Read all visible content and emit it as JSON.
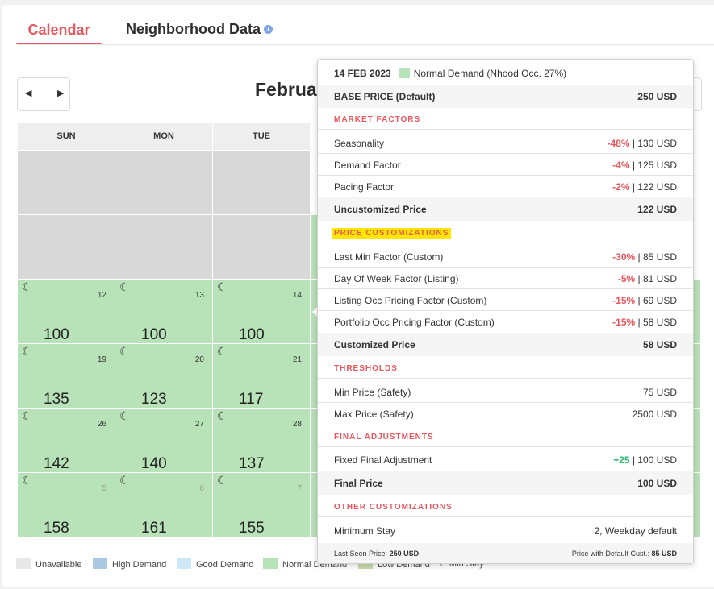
{
  "tabs": {
    "calendar": "Calendar",
    "neighborhood": "Neighborhood Data",
    "info_icon": "i"
  },
  "nav": {
    "prev": "◀",
    "next": "▶"
  },
  "month_title": "Februa",
  "days_of_week": [
    "SUN",
    "MON",
    "TUE"
  ],
  "weeks": [
    {
      "cells": [
        {
          "state": "unavailable"
        },
        {
          "state": "unavailable"
        },
        {
          "state": "unavailable"
        }
      ]
    },
    {
      "cells": [
        {
          "state": "unavailable"
        },
        {
          "state": "unavailable"
        },
        {
          "state": "unavailable"
        }
      ]
    },
    {
      "cells": [
        {
          "day": "12",
          "price": "100"
        },
        {
          "day": "13",
          "price": "100"
        },
        {
          "day": "14",
          "price": "100"
        }
      ]
    },
    {
      "cells": [
        {
          "day": "19",
          "price": "135"
        },
        {
          "day": "20",
          "price": "123"
        },
        {
          "day": "21",
          "price": "117"
        }
      ]
    },
    {
      "cells": [
        {
          "day": "26",
          "price": "142"
        },
        {
          "day": "27",
          "price": "140"
        },
        {
          "day": "28",
          "price": "137"
        }
      ]
    },
    {
      "cells": [
        {
          "day": "5",
          "price": "158"
        },
        {
          "day": "6",
          "price": "161"
        },
        {
          "day": "7",
          "price": "155"
        }
      ]
    }
  ],
  "legend": [
    "Unavailable",
    "High Demand",
    "Good Demand",
    "Normal Demand",
    "Low Demand",
    "Min Stay"
  ],
  "colors": {
    "accent": "#e8585f",
    "normal_demand": "#b8e2b8",
    "high_demand": "#a9c9e3",
    "good_demand": "#cde8f7",
    "unavailable": "#e8e8e8",
    "low_demand": "#c9dcab",
    "positive": "#2eb872"
  },
  "popover": {
    "date": "14 FEB 2023",
    "demand": "Normal Demand (Nhood Occ. 27%)",
    "base_price_label": "BASE PRICE (Default)",
    "base_price_value": "250 USD",
    "market_factors_title": "MARKET FACTORS",
    "market_factors": [
      {
        "label": "Seasonality",
        "pct": "-48%",
        "value": "130 USD"
      },
      {
        "label": "Demand Factor",
        "pct": "-4%",
        "value": "125 USD"
      },
      {
        "label": "Pacing Factor",
        "pct": "-2%",
        "value": "122 USD"
      }
    ],
    "uncustomized_label": "Uncustomized Price",
    "uncustomized_value": "122 USD",
    "price_customizations_title": "PRICE CUSTOMIZATIONS",
    "price_customizations": [
      {
        "label": "Last Min Factor (Custom)",
        "pct": "-30%",
        "value": "85 USD"
      },
      {
        "label": "Day Of Week Factor (Listing)",
        "pct": "-5%",
        "value": "81 USD"
      },
      {
        "label": "Listing Occ Pricing Factor (Custom)",
        "pct": "-15%",
        "value": "69 USD"
      },
      {
        "label": "Portfolio Occ Pricing Factor (Custom)",
        "pct": "-15%",
        "value": "58 USD"
      }
    ],
    "customized_label": "Customized Price",
    "customized_value": "58 USD",
    "thresholds_title": "THRESHOLDS",
    "min_label": "Min Price (Safety)",
    "min_value": "75 USD",
    "max_label": "Max Price (Safety)",
    "max_value": "2500 USD",
    "final_adjustments_title": "FINAL ADJUSTMENTS",
    "fixed_label": "Fixed Final Adjustment",
    "fixed_pct": "+25",
    "fixed_value": "100 USD",
    "final_label": "Final Price",
    "final_value": "100 USD",
    "other_title": "OTHER CUSTOMIZATIONS",
    "min_stay_label": "Minimum Stay",
    "min_stay_value": "2, Weekday default",
    "last_seen_label": "Last Seen Price:",
    "last_seen_value": "250 USD",
    "default_cust_label": "Price with Default Cust.:",
    "default_cust_value": "85 USD"
  }
}
